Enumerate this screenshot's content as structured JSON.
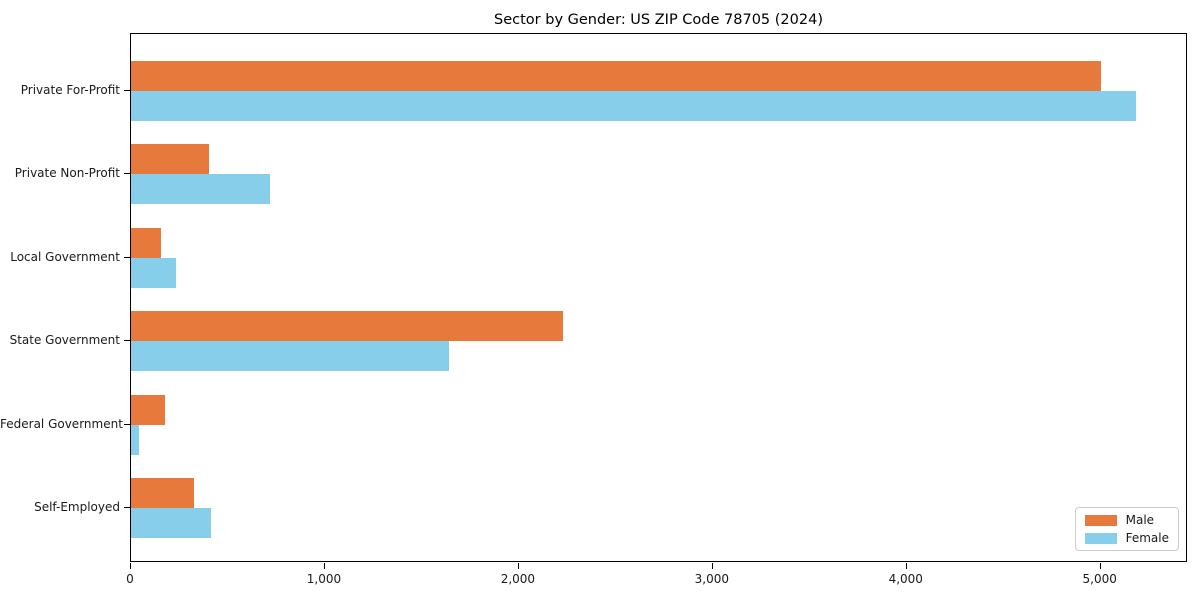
{
  "chart_data": {
    "type": "bar",
    "orientation": "horizontal",
    "title": "Sector by Gender: US ZIP Code 78705 (2024)",
    "categories": [
      "Private For-Profit",
      "Private Non-Profit",
      "Local Government",
      "State Government",
      "Federal Government",
      "Self-Employed"
    ],
    "series": [
      {
        "name": "Male",
        "color": "#e8793d",
        "values": [
          5000,
          400,
          155,
          2225,
          175,
          325
        ]
      },
      {
        "name": "Female",
        "color": "#87ceeb",
        "values": [
          5180,
          715,
          230,
          1640,
          40,
          410
        ]
      }
    ],
    "xlabel": "",
    "ylabel": "",
    "xlim": [
      0,
      5450
    ],
    "x_ticks": [
      0,
      1000,
      2000,
      3000,
      4000,
      5000
    ],
    "x_tick_labels": [
      "0",
      "1,000",
      "2,000",
      "3,000",
      "4,000",
      "5,000"
    ],
    "grid": false,
    "legend_position": "lower right",
    "legend_labels": [
      "Male",
      "Female"
    ]
  }
}
